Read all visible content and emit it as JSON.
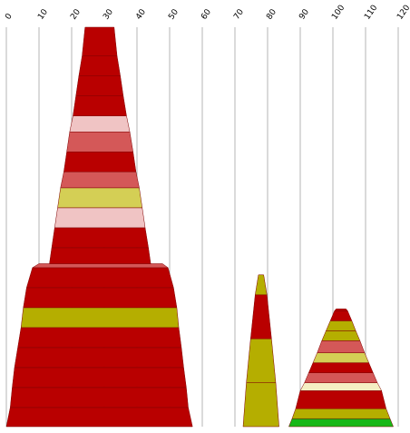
{
  "chart_data": {
    "type": "stacked-trapezoid",
    "x_axis": {
      "ticks": [
        0,
        10,
        20,
        30,
        40,
        50,
        60,
        70,
        80,
        90,
        100,
        110,
        120
      ],
      "tick_labels": [
        "0",
        "10",
        "20",
        "30",
        "40",
        "50",
        "60",
        "70",
        "80",
        "90",
        "100",
        "110",
        "120"
      ],
      "range": [
        0,
        120
      ],
      "position": "top",
      "grid": true
    },
    "colors": {
      "red": "#b90000",
      "pink": "#f0c4c4",
      "rose": "#d45858",
      "yellow": "#d4cf55",
      "olive": "#b5ae00",
      "cream": "#f5efc3",
      "green": "#18b818"
    },
    "stacks": [
      {
        "segments": [
          {
            "bottom_left": 0.0,
            "bottom_right": 57.0,
            "top_left": 1.2,
            "top_right": 55.7,
            "color": "red"
          },
          {
            "bottom_left": 1.2,
            "bottom_right": 55.7,
            "top_left": 1.8,
            "top_right": 55.1,
            "color": "red"
          },
          {
            "bottom_left": 1.8,
            "bottom_right": 55.1,
            "top_left": 2.5,
            "top_right": 54.3,
            "color": "red"
          },
          {
            "bottom_left": 2.5,
            "bottom_right": 54.3,
            "top_left": 3.5,
            "top_right": 53.6,
            "color": "red"
          },
          {
            "bottom_left": 3.5,
            "bottom_right": 53.6,
            "top_left": 4.5,
            "top_right": 52.8,
            "color": "red"
          },
          {
            "bottom_left": 4.5,
            "bottom_right": 52.8,
            "top_left": 5.2,
            "top_right": 52.2,
            "color": "olive"
          },
          {
            "bottom_left": 5.2,
            "bottom_right": 52.2,
            "top_left": 6.2,
            "top_right": 51.2,
            "color": "red"
          },
          {
            "bottom_left": 6.2,
            "bottom_right": 51.2,
            "top_left": 8.0,
            "top_right": 49.5,
            "color": "red"
          },
          {
            "bottom_left": 8.0,
            "bottom_right": 49.5,
            "top_left": 10.0,
            "top_right": 47.8,
            "color": "rose"
          },
          {
            "bottom_left": 13.2,
            "bottom_right": 44.2,
            "top_left": 13.9,
            "top_right": 43.5,
            "color": "red"
          },
          {
            "bottom_left": 13.9,
            "bottom_right": 43.5,
            "top_left": 14.8,
            "top_right": 42.5,
            "color": "red"
          },
          {
            "bottom_left": 14.8,
            "bottom_right": 42.5,
            "top_left": 15.7,
            "top_right": 41.6,
            "color": "pink"
          },
          {
            "bottom_left": 15.7,
            "bottom_right": 41.6,
            "top_left": 16.6,
            "top_right": 40.7,
            "color": "yellow"
          },
          {
            "bottom_left": 16.6,
            "bottom_right": 40.7,
            "top_left": 17.6,
            "top_right": 39.7,
            "color": "rose"
          },
          {
            "bottom_left": 17.6,
            "bottom_right": 39.7,
            "top_left": 18.5,
            "top_right": 38.8,
            "color": "red"
          },
          {
            "bottom_left": 18.5,
            "bottom_right": 38.8,
            "top_left": 19.4,
            "top_right": 37.8,
            "color": "rose"
          },
          {
            "bottom_left": 19.4,
            "bottom_right": 37.8,
            "top_left": 20.4,
            "top_right": 36.8,
            "color": "pink"
          },
          {
            "bottom_left": 20.4,
            "bottom_right": 36.8,
            "top_left": 21.3,
            "top_right": 35.8,
            "color": "red"
          },
          {
            "bottom_left": 21.3,
            "bottom_right": 35.8,
            "top_left": 22.2,
            "top_right": 34.9,
            "color": "red"
          },
          {
            "bottom_left": 22.2,
            "bottom_right": 34.9,
            "top_left": 23.2,
            "top_right": 33.9,
            "color": "red"
          },
          {
            "bottom_left": 23.2,
            "bottom_right": 33.9,
            "top_left": 24.1,
            "top_right": 33.0,
            "color": "red"
          }
        ],
        "levels": [
          0,
          0.048,
          0.098,
          0.148,
          0.198,
          0.248,
          0.298,
          0.348,
          0.398,
          0.408,
          0.448,
          0.498,
          0.548,
          0.598,
          0.638,
          0.688,
          0.738,
          0.778,
          0.828,
          0.878,
          0.928,
          1.0
        ]
      },
      {
        "segments": [
          {
            "bottom_left": 72.5,
            "bottom_right": 83.5,
            "top_left": 73.5,
            "top_right": 82.5,
            "color": "olive"
          },
          {
            "bottom_left": 73.5,
            "bottom_right": 82.5,
            "top_left": 74.8,
            "top_right": 81.2,
            "color": "olive"
          },
          {
            "bottom_left": 74.8,
            "bottom_right": 81.2,
            "top_left": 76.2,
            "top_right": 79.8,
            "color": "red"
          },
          {
            "bottom_left": 76.2,
            "bottom_right": 79.8,
            "top_left": 77.2,
            "top_right": 78.8,
            "color": "olive"
          }
        ],
        "levels": [
          0,
          0.11,
          0.22,
          0.33,
          0.38
        ]
      },
      {
        "segments": [
          {
            "bottom_left": 86.5,
            "bottom_right": 118.5,
            "top_left": 87.5,
            "top_right": 117.5,
            "color": "green"
          },
          {
            "bottom_left": 87.5,
            "bottom_right": 117.5,
            "top_left": 88.6,
            "top_right": 116.3,
            "color": "olive"
          },
          {
            "bottom_left": 88.6,
            "bottom_right": 116.3,
            "top_left": 90.0,
            "top_right": 114.9,
            "color": "red"
          },
          {
            "bottom_left": 90.0,
            "bottom_right": 114.9,
            "top_left": 91.3,
            "top_right": 113.6,
            "color": "cream"
          },
          {
            "bottom_left": 91.3,
            "bottom_right": 113.6,
            "top_left": 92.6,
            "top_right": 112.3,
            "color": "rose"
          },
          {
            "bottom_left": 92.6,
            "bottom_right": 112.3,
            "top_left": 93.9,
            "top_right": 111.0,
            "color": "red"
          },
          {
            "bottom_left": 93.9,
            "bottom_right": 111.0,
            "top_left": 95.2,
            "top_right": 109.7,
            "color": "yellow"
          },
          {
            "bottom_left": 95.2,
            "bottom_right": 109.7,
            "top_left": 96.6,
            "top_right": 108.3,
            "color": "rose"
          },
          {
            "bottom_left": 96.6,
            "bottom_right": 108.3,
            "top_left": 97.9,
            "top_right": 107.0,
            "color": "olive"
          },
          {
            "bottom_left": 97.9,
            "bottom_right": 107.0,
            "top_left": 99.2,
            "top_right": 105.8,
            "color": "olive"
          },
          {
            "bottom_left": 99.2,
            "bottom_right": 105.8,
            "top_left": 100.5,
            "top_right": 104.5,
            "color": "red"
          },
          {
            "bottom_left": 100.5,
            "bottom_right": 104.5,
            "top_left": 101.0,
            "top_right": 104.0,
            "color": "red"
          }
        ],
        "levels": [
          0,
          0.02,
          0.045,
          0.09,
          0.11,
          0.135,
          0.16,
          0.185,
          0.215,
          0.24,
          0.265,
          0.29,
          0.295
        ]
      }
    ]
  }
}
